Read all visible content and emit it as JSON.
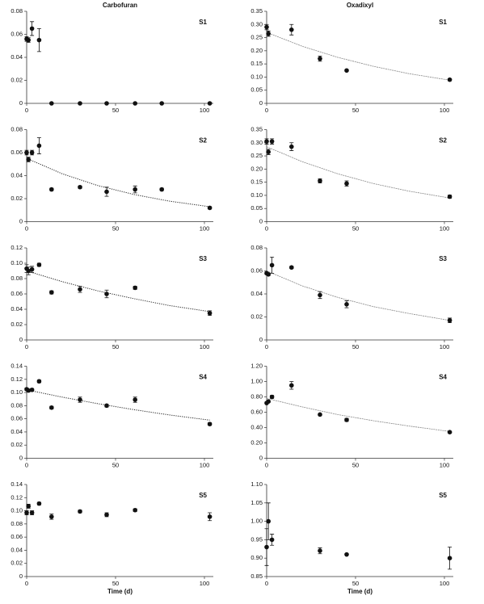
{
  "chart_data": [
    {
      "type": "scatter",
      "title": "Carbofuran",
      "label": "S1",
      "x": [
        0,
        1,
        3,
        7,
        14,
        30,
        45,
        61,
        76,
        103
      ],
      "values": [
        0.056,
        0.055,
        0.065,
        0.055,
        0,
        0,
        0,
        0,
        0,
        0
      ],
      "errors": [
        0.002,
        0.002,
        0.006,
        0.01,
        0,
        0,
        0,
        0,
        0,
        0
      ],
      "xlim": [
        0,
        105
      ],
      "xticks": [
        0,
        50,
        100
      ],
      "ylim": [
        0,
        0.08
      ],
      "yticks": [
        0,
        0.02,
        0.04,
        0.06,
        0.08
      ]
    },
    {
      "type": "scatter",
      "label": "S2",
      "x": [
        0,
        1,
        3,
        7,
        14,
        30,
        45,
        61,
        76,
        103
      ],
      "values": [
        0.06,
        0.054,
        0.06,
        0.066,
        0.028,
        0.03,
        0.026,
        0.028,
        0.028,
        0.012
      ],
      "errors": [
        0.002,
        0.002,
        0.002,
        0.007,
        0.001,
        0.001,
        0.004,
        0.003,
        0.001,
        0.001
      ],
      "fit": {
        "x": [
          0,
          20,
          40,
          60,
          80,
          103
        ],
        "values": [
          0.055,
          0.0416,
          0.0314,
          0.0237,
          0.0179,
          0.013
        ]
      },
      "xlim": [
        0,
        105
      ],
      "xticks": [
        0,
        50,
        100
      ],
      "ylim": [
        0,
        0.08
      ],
      "yticks": [
        0,
        0.02,
        0.04,
        0.06,
        0.08
      ]
    },
    {
      "type": "scatter",
      "label": "S3",
      "x": [
        0,
        1,
        3,
        7,
        14,
        30,
        45,
        61,
        103
      ],
      "values": [
        0.093,
        0.09,
        0.092,
        0.098,
        0.062,
        0.066,
        0.06,
        0.068,
        0.035
      ],
      "errors": [
        0.005,
        0.005,
        0.004,
        0.002,
        0.002,
        0.004,
        0.005,
        0.002,
        0.003
      ],
      "fit": {
        "x": [
          0,
          20,
          40,
          60,
          80,
          103
        ],
        "values": [
          0.09,
          0.076,
          0.064,
          0.054,
          0.045,
          0.037
        ]
      },
      "xlim": [
        0,
        105
      ],
      "xticks": [
        0,
        50,
        100
      ],
      "ylim": [
        0,
        0.12
      ],
      "yticks": [
        0,
        0.02,
        0.04,
        0.06,
        0.08,
        {
          "value": 0.1,
          "label": "0.10"
        },
        0.12
      ]
    },
    {
      "type": "scatter",
      "label": "S4",
      "x": [
        0,
        1,
        3,
        7,
        14,
        30,
        45,
        61,
        103
      ],
      "values": [
        0.105,
        0.103,
        0.104,
        0.117,
        0.077,
        0.089,
        0.08,
        0.089,
        0.052
      ],
      "errors": [
        0.002,
        0.002,
        0.002,
        0.002,
        0.002,
        0.004,
        0.002,
        0.004,
        0.002
      ],
      "fit": {
        "x": [
          0,
          20,
          40,
          60,
          80,
          103
        ],
        "values": [
          0.104,
          0.093,
          0.083,
          0.074,
          0.066,
          0.058
        ]
      },
      "xlim": [
        0,
        105
      ],
      "xticks": [
        0,
        50,
        100
      ],
      "ylim": [
        0,
        0.14
      ],
      "yticks": [
        0,
        0.02,
        0.04,
        0.06,
        0.08,
        {
          "value": 0.1,
          "label": "0.10"
        },
        0.12,
        0.14
      ]
    },
    {
      "type": "scatter",
      "label": "S5",
      "xlabel": "Time (d)",
      "x": [
        0,
        1,
        3,
        7,
        14,
        30,
        45,
        61,
        103
      ],
      "values": [
        0.097,
        0.107,
        0.097,
        0.111,
        0.091,
        0.099,
        0.094,
        0.101,
        0.091
      ],
      "errors": [
        0.003,
        0.003,
        0.003,
        0.002,
        0.004,
        0.002,
        0.003,
        0.002,
        0.006
      ],
      "xlim": [
        0,
        105
      ],
      "xticks": [
        0,
        50,
        100
      ],
      "ylim": [
        0,
        0.14
      ],
      "yticks": [
        0,
        0.02,
        0.04,
        0.06,
        0.08,
        {
          "value": 0.1,
          "label": "0.10"
        },
        0.12,
        0.14
      ]
    },
    {
      "type": "scatter",
      "title": "Oxadixyl",
      "label": "S1",
      "x": [
        0,
        1,
        14,
        30,
        45,
        103
      ],
      "values": [
        0.29,
        0.265,
        0.28,
        0.17,
        0.125,
        0.09
      ],
      "errors": [
        0.01,
        0.01,
        0.02,
        0.01,
        0.003,
        0.004
      ],
      "fit": {
        "x": [
          0,
          20,
          40,
          60,
          80,
          103
        ],
        "values": [
          0.27,
          0.217,
          0.175,
          0.141,
          0.113,
          0.088
        ]
      },
      "xlim": [
        0,
        105
      ],
      "xticks": [
        0,
        50,
        100
      ],
      "ylim": [
        0,
        0.35
      ],
      "yticks": [
        0,
        0.05,
        {
          "value": 0.1,
          "label": "0.10"
        },
        0.15,
        {
          "value": 0.2,
          "label": "0.20"
        },
        0.25,
        {
          "value": 0.3,
          "label": "0.30"
        },
        0.35
      ]
    },
    {
      "type": "scatter",
      "label": "S2",
      "x": [
        0,
        1,
        3,
        14,
        30,
        45,
        103
      ],
      "values": [
        0.305,
        0.265,
        0.305,
        0.285,
        0.155,
        0.145,
        0.095
      ],
      "errors": [
        0.01,
        0.01,
        0.01,
        0.015,
        0.008,
        0.01,
        0.006
      ],
      "fit": {
        "x": [
          0,
          20,
          40,
          60,
          80,
          103
        ],
        "values": [
          0.285,
          0.228,
          0.182,
          0.145,
          0.116,
          0.09
        ]
      },
      "xlim": [
        0,
        105
      ],
      "xticks": [
        0,
        50,
        100
      ],
      "ylim": [
        0,
        0.35
      ],
      "yticks": [
        0,
        0.05,
        {
          "value": 0.1,
          "label": "0.10"
        },
        0.15,
        {
          "value": 0.2,
          "label": "0.20"
        },
        0.25,
        {
          "value": 0.3,
          "label": "0.30"
        },
        0.35
      ]
    },
    {
      "type": "scatter",
      "label": "S3",
      "x": [
        0,
        1,
        3,
        14,
        30,
        45,
        103
      ],
      "values": [
        0.058,
        0.057,
        0.065,
        0.063,
        0.039,
        0.031,
        0.017
      ],
      "errors": [
        0.001,
        0.001,
        0.007,
        0.001,
        0.003,
        0.003,
        0.002
      ],
      "fit": {
        "x": [
          0,
          20,
          40,
          60,
          80,
          103
        ],
        "values": [
          0.06,
          0.047,
          0.037,
          0.029,
          0.023,
          0.017
        ]
      },
      "xlim": [
        0,
        105
      ],
      "xticks": [
        0,
        50,
        100
      ],
      "ylim": [
        0,
        0.08
      ],
      "yticks": [
        0,
        0.02,
        0.04,
        0.06,
        0.08
      ]
    },
    {
      "type": "scatter",
      "label": "S4",
      "x": [
        0,
        1,
        3,
        14,
        30,
        45,
        103
      ],
      "values": [
        0.72,
        0.74,
        0.8,
        0.95,
        0.57,
        0.5,
        0.34
      ],
      "errors": [
        0.01,
        0.01,
        0.02,
        0.05,
        0.01,
        0.02,
        0.01
      ],
      "fit": {
        "x": [
          0,
          20,
          40,
          60,
          80,
          103
        ],
        "values": [
          0.78,
          0.67,
          0.57,
          0.49,
          0.42,
          0.35
        ]
      },
      "xlim": [
        0,
        105
      ],
      "xticks": [
        0,
        50,
        100
      ],
      "ylim": [
        0,
        1.2
      ],
      "yticks": [
        0,
        {
          "value": 0.2,
          "label": "0.20"
        },
        {
          "value": 0.4,
          "label": "0.40"
        },
        {
          "value": 0.6,
          "label": "0.60"
        },
        {
          "value": 0.8,
          "label": "0.80"
        },
        {
          "value": 1,
          "label": "1.00"
        },
        {
          "value": 1.2,
          "label": "1.20"
        }
      ]
    },
    {
      "type": "scatter",
      "label": "S5",
      "xlabel": "Time (d)",
      "x": [
        0,
        1,
        3,
        30,
        45,
        103
      ],
      "values": [
        0.93,
        1.0,
        0.95,
        0.92,
        0.91,
        0.9
      ],
      "errors": [
        0.05,
        0.05,
        0.015,
        0.008,
        0.002,
        0.03
      ],
      "xlim": [
        0,
        105
      ],
      "xticks": [
        0,
        50,
        100
      ],
      "ylim": [
        0.85,
        1.1
      ],
      "yticks": [
        0.85,
        {
          "value": 0.9,
          "label": "0.90"
        },
        0.95,
        {
          "value": 1,
          "label": "1.00"
        },
        1.05,
        {
          "value": 1.1,
          "label": "1.10"
        }
      ]
    }
  ]
}
